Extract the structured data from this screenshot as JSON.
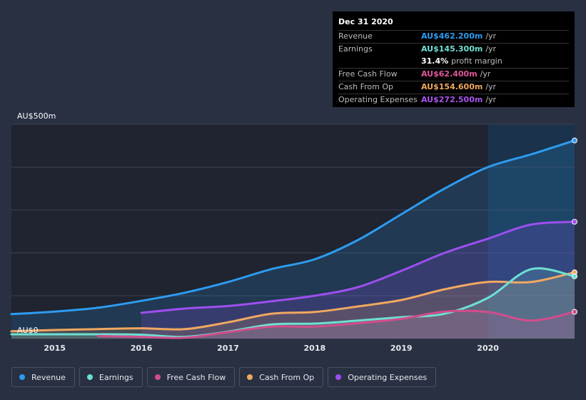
{
  "tooltip": {
    "date": "Dec 31 2020",
    "rows": [
      {
        "label": "Revenue",
        "value": "AU$462.200m",
        "unit": "/yr",
        "color": "#2d9cf0"
      },
      {
        "label": "Earnings",
        "value": "AU$145.300m",
        "unit": "/yr",
        "color": "#6ee0d2"
      },
      {
        "label": "",
        "value": "31.4%",
        "unit": "profit margin",
        "color": "#ffffff"
      },
      {
        "label": "Free Cash Flow",
        "value": "AU$62.400m",
        "unit": "/yr",
        "color": "#e0569b"
      },
      {
        "label": "Cash From Op",
        "value": "AU$154.600m",
        "unit": "/yr",
        "color": "#f0a860"
      },
      {
        "label": "Operating Expenses",
        "value": "AU$272.500m",
        "unit": "/yr",
        "color": "#a855f0"
      }
    ]
  },
  "legend": [
    {
      "label": "Revenue",
      "color": "#2d9cf0"
    },
    {
      "label": "Earnings",
      "color": "#6ee0d2"
    },
    {
      "label": "Free Cash Flow",
      "color": "#d14d8c"
    },
    {
      "label": "Cash From Op",
      "color": "#f0a860"
    },
    {
      "label": "Operating Expenses",
      "color": "#9d4ff0"
    }
  ],
  "chart_data": {
    "type": "area",
    "title": "",
    "xlabel": "",
    "ylabel": "",
    "y_axis_labels": {
      "top": "AU$500m",
      "bottom": "AU$0"
    },
    "ylim": [
      0,
      500
    ],
    "xlim": [
      2014.5,
      2021.0
    ],
    "x_ticks": [
      2015,
      2016,
      2017,
      2018,
      2019,
      2020
    ],
    "highlight_from": 2020.0,
    "series": [
      {
        "name": "Revenue",
        "color": "#2d9cf0",
        "x": [
          2014.5,
          2015.0,
          2015.5,
          2016.0,
          2016.5,
          2017.0,
          2017.5,
          2018.0,
          2018.5,
          2019.0,
          2019.5,
          2020.0,
          2020.5,
          2021.0
        ],
        "values": [
          57,
          63,
          72,
          88,
          107,
          132,
          162,
          185,
          230,
          290,
          350,
          400,
          430,
          462.2
        ]
      },
      {
        "name": "Operating Expenses",
        "color": "#9d4ff0",
        "x": [
          2016.0,
          2016.5,
          2017.0,
          2017.5,
          2018.0,
          2018.5,
          2019.0,
          2019.5,
          2020.0,
          2020.5,
          2021.0
        ],
        "values": [
          60,
          70,
          76,
          87,
          100,
          120,
          158,
          200,
          233,
          266,
          272.5
        ]
      },
      {
        "name": "Cash From Op",
        "color": "#f0a860",
        "x": [
          2014.5,
          2015.0,
          2015.5,
          2016.0,
          2016.5,
          2017.0,
          2017.5,
          2018.0,
          2018.5,
          2019.0,
          2019.5,
          2020.0,
          2020.5,
          2021.0
        ],
        "values": [
          17,
          20,
          22,
          24,
          22,
          38,
          58,
          62,
          75,
          90,
          115,
          132,
          132,
          154.6
        ]
      },
      {
        "name": "Earnings",
        "color": "#6ee0d2",
        "x": [
          2014.5,
          2015.0,
          2015.5,
          2016.0,
          2016.5,
          2017.0,
          2017.5,
          2018.0,
          2018.5,
          2019.0,
          2019.5,
          2020.0,
          2020.5,
          2021.0
        ],
        "values": [
          10,
          10,
          10,
          9,
          4,
          16,
          33,
          35,
          42,
          50,
          58,
          95,
          162,
          145.3
        ]
      },
      {
        "name": "Free Cash Flow",
        "color": "#d14d8c",
        "x": [
          2015.5,
          2016.0,
          2016.5,
          2017.0,
          2017.5,
          2018.0,
          2018.5,
          2019.0,
          2019.5,
          2020.0,
          2020.5,
          2021.0
        ],
        "values": [
          6,
          4,
          2,
          15,
          28,
          28,
          36,
          46,
          63,
          62,
          42,
          62.4
        ]
      }
    ]
  }
}
